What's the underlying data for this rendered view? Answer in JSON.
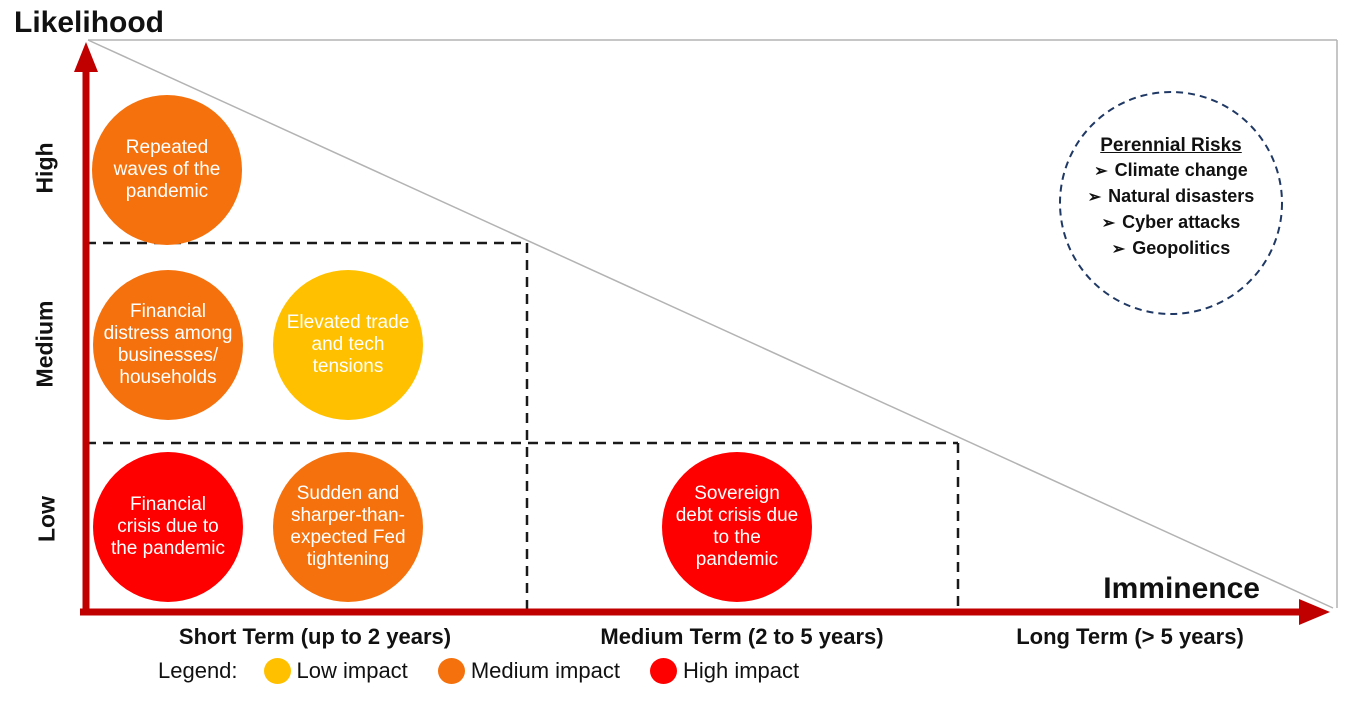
{
  "axes": {
    "y_title": "Likelihood",
    "x_title": "Imminence",
    "y_labels": [
      "High",
      "Medium",
      "Low"
    ],
    "x_labels": [
      "Short Term (up to 2 years)",
      "Medium Term (2 to 5 years)",
      "Long Term (> 5 years)"
    ]
  },
  "colors": {
    "low_impact": "#FFC000",
    "medium_impact": "#F4710D",
    "high_impact": "#FE0000",
    "axis": "#C00000",
    "frame": "#B3B3B3",
    "grid_dash": "#1A1A1A",
    "perennial_border": "#1F3864"
  },
  "bubbles": [
    {
      "label": "Repeated\nwaves of the\npandemic",
      "impact": "Medium impact",
      "color": "#F4710D"
    },
    {
      "label": "Financial\ndistress among\nbusinesses/\nhouseholds",
      "impact": "Medium impact",
      "color": "#F4710D"
    },
    {
      "label": "Elevated trade\nand tech\ntensions",
      "impact": "Low impact",
      "color": "#FFC000"
    },
    {
      "label": "Financial\ncrisis due to\nthe pandemic",
      "impact": "High impact",
      "color": "#FE0000"
    },
    {
      "label": "Sudden and\nsharper-than-\nexpected Fed\ntightening",
      "impact": "Medium impact",
      "color": "#F4710D"
    },
    {
      "label": "Sovereign\ndebt crisis due\nto the\npandemic",
      "impact": "High impact",
      "color": "#FE0000"
    }
  ],
  "perennial": {
    "title": "Perennial Risks",
    "bullet": "➢",
    "items": [
      "Climate change",
      "Natural disasters",
      "Cyber attacks",
      "Geopolitics"
    ]
  },
  "legend": {
    "label": "Legend:",
    "items": [
      {
        "label": "Low impact",
        "color": "#FFC000"
      },
      {
        "label": "Medium impact",
        "color": "#F4710D"
      },
      {
        "label": "High impact",
        "color": "#FE0000"
      }
    ]
  },
  "chart_data": {
    "type": "risk_matrix",
    "x_axis": {
      "label": "Imminence",
      "categories": [
        "Short Term (up to 2 years)",
        "Medium Term (2 to 5 years)",
        "Long Term (> 5 years)"
      ]
    },
    "y_axis": {
      "label": "Likelihood",
      "categories": [
        "Low",
        "Medium",
        "High"
      ]
    },
    "impact_scale": [
      "Low impact",
      "Medium impact",
      "High impact"
    ],
    "risks": [
      {
        "label": "Repeated waves of the pandemic",
        "likelihood": "High",
        "imminence": "Short Term",
        "impact": "Medium"
      },
      {
        "label": "Financial distress among businesses/ households",
        "likelihood": "Medium",
        "imminence": "Short Term",
        "impact": "Medium"
      },
      {
        "label": "Elevated trade and tech tensions",
        "likelihood": "Medium",
        "imminence": "Short Term",
        "impact": "Low"
      },
      {
        "label": "Financial crisis due to the pandemic",
        "likelihood": "Low",
        "imminence": "Short Term",
        "impact": "High"
      },
      {
        "label": "Sudden and sharper-than-expected Fed tightening",
        "likelihood": "Low",
        "imminence": "Short Term",
        "impact": "Medium"
      },
      {
        "label": "Sovereign debt crisis due to the pandemic",
        "likelihood": "Low",
        "imminence": "Medium Term",
        "impact": "High"
      }
    ],
    "perennial_risks": [
      "Climate change",
      "Natural disasters",
      "Cyber attacks",
      "Geopolitics"
    ]
  }
}
